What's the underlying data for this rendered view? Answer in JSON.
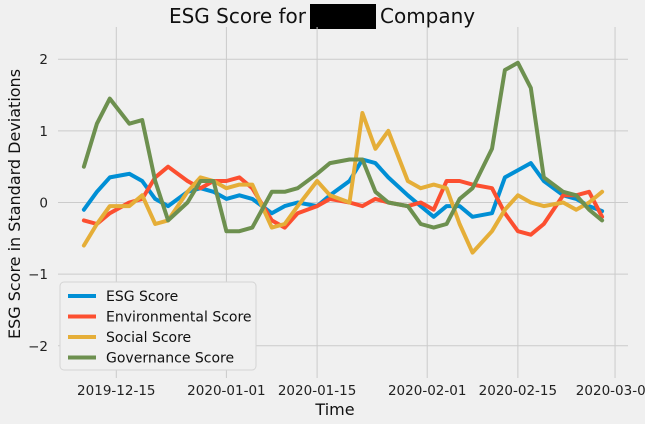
{
  "colors": {
    "background": "#f0f0f0",
    "grid": "#cbcbcb",
    "redaction": "#000000"
  },
  "chart_data": {
    "type": "line",
    "title_prefix": "ESG Score for",
    "title_suffix": "Company",
    "xlabel": "Time",
    "ylabel": "ESG Score in Standard Deviations",
    "xlim": [
      "2019-12-06",
      "2020-03-03"
    ],
    "ylim": [
      -2.45,
      2.45
    ],
    "x_ticks": [
      "2019-12-15",
      "2020-01-01",
      "2020-01-15",
      "2020-02-01",
      "2020-02-15",
      "2020-03-01"
    ],
    "y_ticks": [
      -2,
      -1,
      0,
      1,
      2
    ],
    "y_tick_labels": [
      "−2",
      "−1",
      "0",
      "1",
      "2"
    ],
    "grid": true,
    "legend_position": "lower-left",
    "x": [
      "2019-12-10",
      "2019-12-12",
      "2019-12-14",
      "2019-12-17",
      "2019-12-19",
      "2019-12-21",
      "2019-12-23",
      "2019-12-26",
      "2019-12-28",
      "2019-12-30",
      "2020-01-01",
      "2020-01-03",
      "2020-01-05",
      "2020-01-08",
      "2020-01-10",
      "2020-01-12",
      "2020-01-15",
      "2020-01-17",
      "2020-01-20",
      "2020-01-22",
      "2020-01-24",
      "2020-01-26",
      "2020-01-29",
      "2020-01-31",
      "2020-02-02",
      "2020-02-04",
      "2020-02-06",
      "2020-02-08",
      "2020-02-11",
      "2020-02-13",
      "2020-02-15",
      "2020-02-17",
      "2020-02-19",
      "2020-02-22",
      "2020-02-24",
      "2020-02-26",
      "2020-02-28"
    ],
    "series": [
      {
        "name": "ESG Score",
        "color": "#008fd5",
        "values": [
          -0.1,
          0.15,
          0.35,
          0.4,
          0.3,
          0.05,
          -0.05,
          0.15,
          0.2,
          0.15,
          0.05,
          0.1,
          0.05,
          -0.15,
          -0.05,
          0.0,
          -0.05,
          0.1,
          0.3,
          0.6,
          0.55,
          0.35,
          0.1,
          -0.05,
          -0.2,
          -0.05,
          -0.05,
          -0.2,
          -0.15,
          0.35,
          0.45,
          0.55,
          0.3,
          0.1,
          0.05,
          -0.05,
          -0.12
        ]
      },
      {
        "name": "Environmental Score",
        "color": "#fc4f30",
        "values": [
          -0.25,
          -0.3,
          -0.15,
          0.0,
          0.05,
          0.35,
          0.5,
          0.3,
          0.2,
          0.3,
          0.3,
          0.35,
          0.2,
          -0.25,
          -0.35,
          -0.15,
          -0.05,
          0.05,
          0.0,
          -0.05,
          0.05,
          0.0,
          -0.05,
          0.0,
          -0.1,
          0.3,
          0.3,
          0.25,
          0.2,
          -0.15,
          -0.4,
          -0.45,
          -0.3,
          0.1,
          0.1,
          0.15,
          -0.2
        ]
      },
      {
        "name": "Social Score",
        "color": "#e5ae38",
        "values": [
          -0.6,
          -0.3,
          -0.05,
          -0.05,
          0.1,
          -0.3,
          -0.25,
          0.15,
          0.35,
          0.3,
          0.2,
          0.25,
          0.25,
          -0.35,
          -0.3,
          -0.05,
          0.3,
          0.1,
          0.0,
          1.25,
          0.75,
          1.0,
          0.3,
          0.2,
          0.25,
          0.2,
          -0.3,
          -0.7,
          -0.4,
          -0.1,
          0.1,
          0.0,
          -0.05,
          0.0,
          -0.1,
          0.0,
          0.15
        ]
      },
      {
        "name": "Governance Score",
        "color": "#6d904f",
        "values": [
          0.5,
          1.1,
          1.45,
          1.1,
          1.15,
          0.3,
          -0.25,
          0.0,
          0.3,
          0.3,
          -0.4,
          -0.4,
          -0.35,
          0.15,
          0.15,
          0.2,
          0.4,
          0.55,
          0.6,
          0.6,
          0.15,
          0.0,
          -0.05,
          -0.3,
          -0.35,
          -0.3,
          0.05,
          0.2,
          0.75,
          1.85,
          1.95,
          1.6,
          0.35,
          0.15,
          0.1,
          -0.1,
          -0.25
        ]
      }
    ],
    "legend": [
      {
        "label": "ESG Score",
        "color": "#008fd5"
      },
      {
        "label": "Environmental Score",
        "color": "#fc4f30"
      },
      {
        "label": "Social Score",
        "color": "#e5ae38"
      },
      {
        "label": "Governance Score",
        "color": "#6d904f"
      }
    ]
  }
}
